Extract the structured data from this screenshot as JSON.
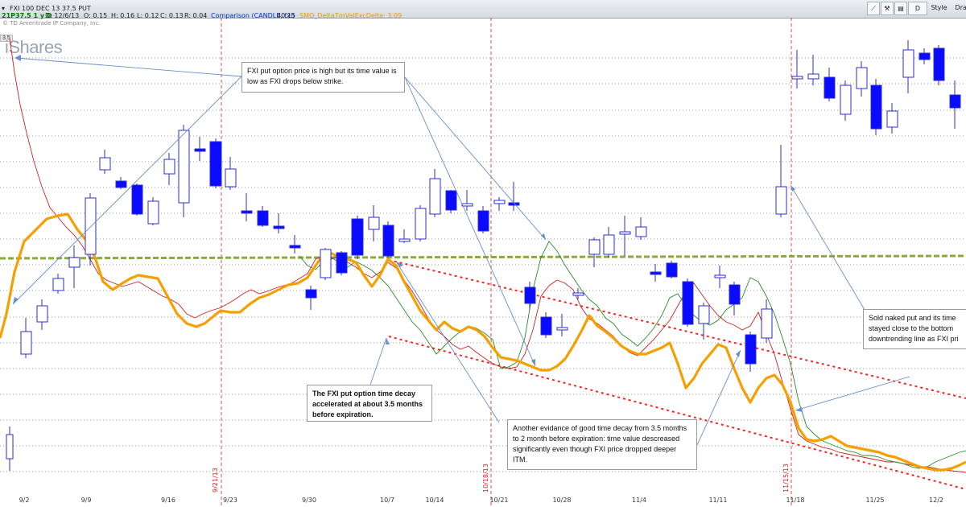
{
  "toolbar": {
    "symbol": "FXI 100 DEC 13 37.5 PUT",
    "timeframe": "21P37.5 1 y D",
    "date": "D: 12/6/13",
    "open": "O: 0.15",
    "high": "H: 0.16",
    "low": "L: 0.12",
    "close": "C: 0.13",
    "change": "R: 0.04",
    "comparison": "Comparison (CANDLE, fxi)",
    "comparison_value": "40.15",
    "smo_delta": "SMO_Delta",
    "timevalue": "TmValExcDelta: 3.09",
    "period_button": "D",
    "style_label": "Style",
    "drawings_label": "Draw"
  },
  "watermark": {
    "copyright": "© TD Ameritrade IP Company, Inc.",
    "logo": "iShares",
    "level": "3.5"
  },
  "chart_data": {
    "type": "candlestick",
    "x_ticks": [
      "9/2",
      "9/9",
      "9/16",
      "9/23",
      "9/30",
      "10/7",
      "10/14",
      "10/21",
      "10/28",
      "11/4",
      "11/11",
      "11/18",
      "11/25",
      "12/2"
    ],
    "expiration_markers": [
      "9/21/13",
      "10/18/13",
      "11/15/13"
    ],
    "colors": {
      "down_candle": "#0a0aff",
      "up_candle_outline": "#4a4aff",
      "time_value_line": "#f5a000",
      "option_price_line": "#cc2222",
      "fxi_line": "#2e8b2e",
      "strike_line": "#8aaa3a",
      "trend_line": "#ff2020",
      "expiration_line": "#dd2222",
      "callout_line": "#6a8fc8"
    }
  },
  "annotations": {
    "note1": "FXI put option price is high but  its  time value  is low as FXI drops below strike.",
    "note2": "The FXI put option time decay accelerated  at about 3.5 months before expiration.",
    "note3": "Another evidance of good time decay from  3.5 months to 2 month before expiration: time value descreased significantly even though FXI price dropped deeper ITM.",
    "note4": "Sold naked put and its time stayed close to the bottom downtrending line as FXI pri"
  }
}
